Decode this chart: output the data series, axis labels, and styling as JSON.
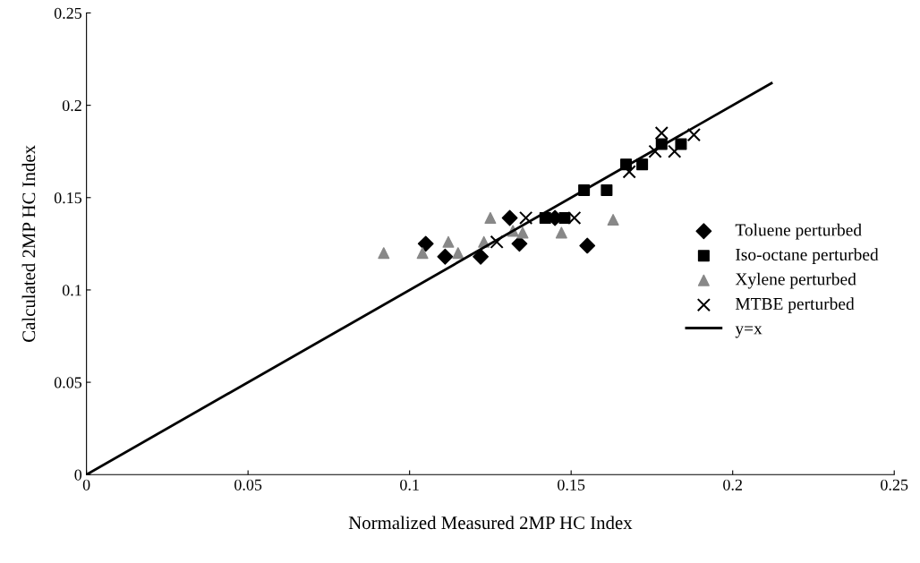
{
  "chart_data": {
    "type": "scatter",
    "xlabel": "Normalized Measured 2MP HC Index",
    "ylabel": "Calculated 2MP HC Index",
    "xlim": [
      0,
      0.25
    ],
    "ylim": [
      0,
      0.25
    ],
    "xticks": [
      0,
      0.05,
      0.1,
      0.15,
      0.2,
      0.25
    ],
    "yticks": [
      0,
      0.05,
      0.1,
      0.15,
      0.2,
      0.25
    ],
    "grid": false,
    "legend": "right",
    "series": [
      {
        "name": "Toluene perturbed",
        "color": "#000000",
        "marker": "diamond",
        "x": [
          0.105,
          0.111,
          0.122,
          0.131,
          0.134,
          0.145,
          0.155
        ],
        "values": [
          0.125,
          0.118,
          0.118,
          0.139,
          0.125,
          0.139,
          0.124
        ]
      },
      {
        "name": "Iso-octane perturbed",
        "color": "#000000",
        "marker": "square",
        "x": [
          0.142,
          0.148,
          0.154,
          0.161,
          0.167,
          0.172,
          0.178,
          0.184
        ],
        "values": [
          0.139,
          0.139,
          0.154,
          0.154,
          0.168,
          0.168,
          0.179,
          0.179
        ]
      },
      {
        "name": "Xylene perturbed",
        "color": "#888888",
        "marker": "triangle",
        "x": [
          0.092,
          0.104,
          0.112,
          0.115,
          0.123,
          0.125,
          0.132,
          0.135,
          0.147,
          0.163
        ],
        "values": [
          0.12,
          0.12,
          0.126,
          0.12,
          0.126,
          0.139,
          0.132,
          0.131,
          0.131,
          0.138
        ]
      },
      {
        "name": "MTBE perturbed",
        "color": "#000000",
        "marker": "cross",
        "x": [
          0.127,
          0.136,
          0.151,
          0.168,
          0.176,
          0.178,
          0.182,
          0.188
        ],
        "values": [
          0.126,
          0.139,
          0.139,
          0.164,
          0.175,
          0.185,
          0.175,
          0.184
        ]
      },
      {
        "name": "y=x",
        "color": "#000000",
        "type": "line",
        "marker": "none",
        "x": [
          0,
          0.212
        ],
        "values": [
          0,
          0.212
        ]
      }
    ]
  }
}
